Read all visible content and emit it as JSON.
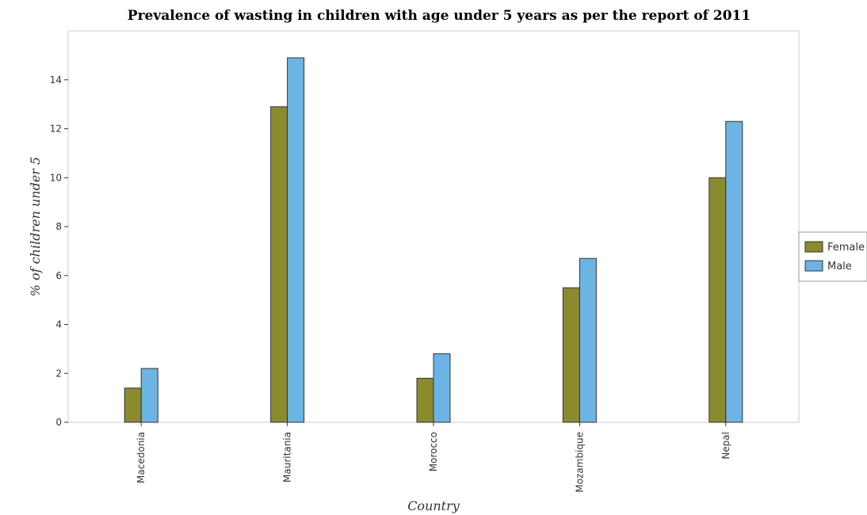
{
  "chart_data": {
    "type": "bar",
    "title": "Prevalence of wasting in children with age under 5 years as per the report of 2011",
    "xlabel": "Country",
    "ylabel": "% of children under 5",
    "categories": [
      "Macedonia",
      "Mauritania",
      "Morocco",
      "Mozambique",
      "Nepal"
    ],
    "series": [
      {
        "name": "Female",
        "values": [
          1.4,
          12.9,
          1.8,
          5.5,
          10.0
        ],
        "color": "#8b8b2e"
      },
      {
        "name": "Male",
        "values": [
          2.2,
          14.9,
          2.8,
          6.7,
          12.3
        ],
        "color": "#6cb4e4"
      }
    ],
    "ylim": [
      0,
      16
    ],
    "yticks": [
      0,
      2,
      4,
      6,
      8,
      10,
      12,
      14
    ],
    "ytick_labels": [
      "0",
      "2",
      "4",
      "6",
      "8",
      "10",
      "12",
      "14"
    ],
    "legend_position": "right",
    "grid": false
  }
}
